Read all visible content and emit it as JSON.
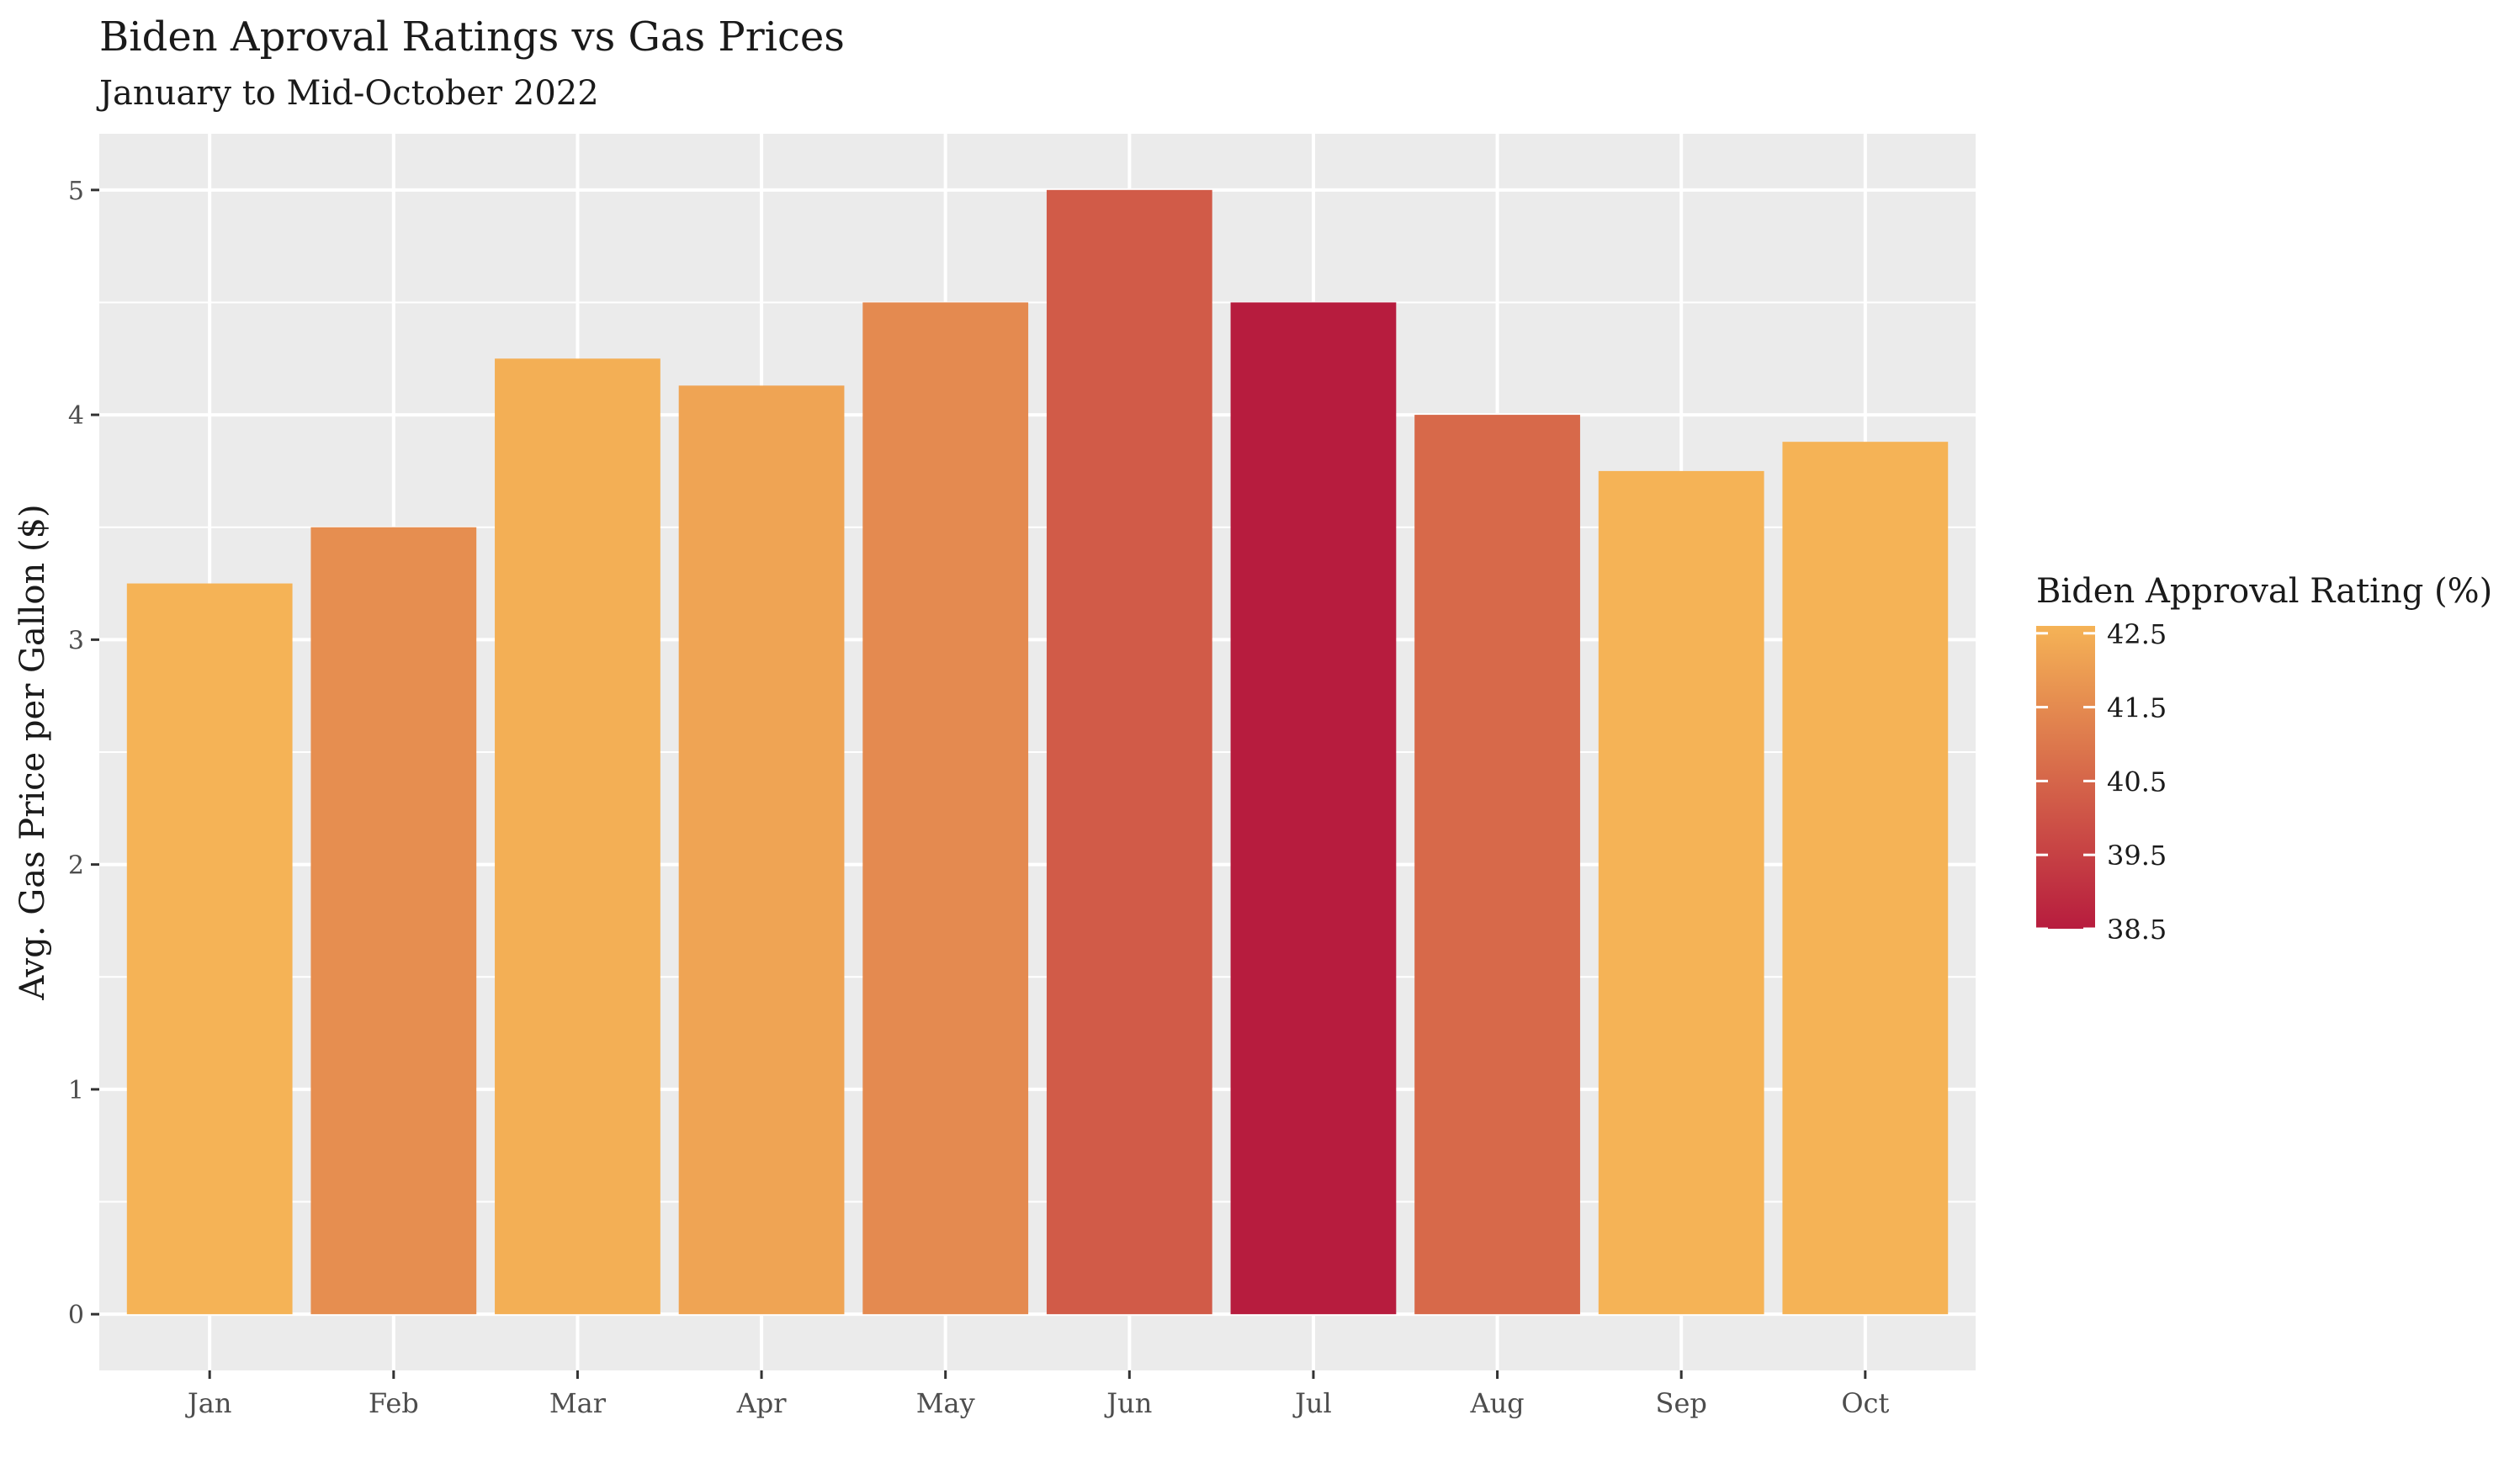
{
  "chart_data": {
    "type": "bar",
    "title": "Biden Aproval Ratings vs Gas Prices",
    "subtitle": "January to Mid-October 2022",
    "xlabel": "",
    "ylabel": "Avg. Gas Price per Gallon ($)",
    "categories": [
      "Jan",
      "Feb",
      "Mar",
      "Apr",
      "May",
      "Jun",
      "Jul",
      "Aug",
      "Sep",
      "Oct"
    ],
    "values": [
      3.25,
      3.5,
      4.25,
      4.13,
      4.5,
      5.0,
      4.5,
      4.0,
      3.75,
      3.88
    ],
    "approval": [
      42.6,
      41.6,
      42.5,
      42.2,
      41.5,
      40.2,
      38.5,
      40.6,
      42.6,
      42.6
    ],
    "ylim": [
      -0.25,
      5.25
    ],
    "yticks": [
      0,
      1,
      2,
      3,
      4,
      5
    ],
    "grid": true,
    "legend": {
      "title": "Biden Approval Rating (%)",
      "position": "right",
      "breaks": [
        "42.5",
        "41.5",
        "40.5",
        "39.5",
        "38.5"
      ],
      "break_values": [
        42.5,
        41.5,
        40.5,
        39.5,
        38.5
      ],
      "range": [
        38.5,
        42.6
      ],
      "color_low": "#b71c3e",
      "color_high": "#f5b356"
    },
    "colors": {
      "panel": "#ebebeb",
      "grid": "#ffffff",
      "text": "#1a1a1a",
      "axis_text": "#4d4d4d"
    }
  }
}
